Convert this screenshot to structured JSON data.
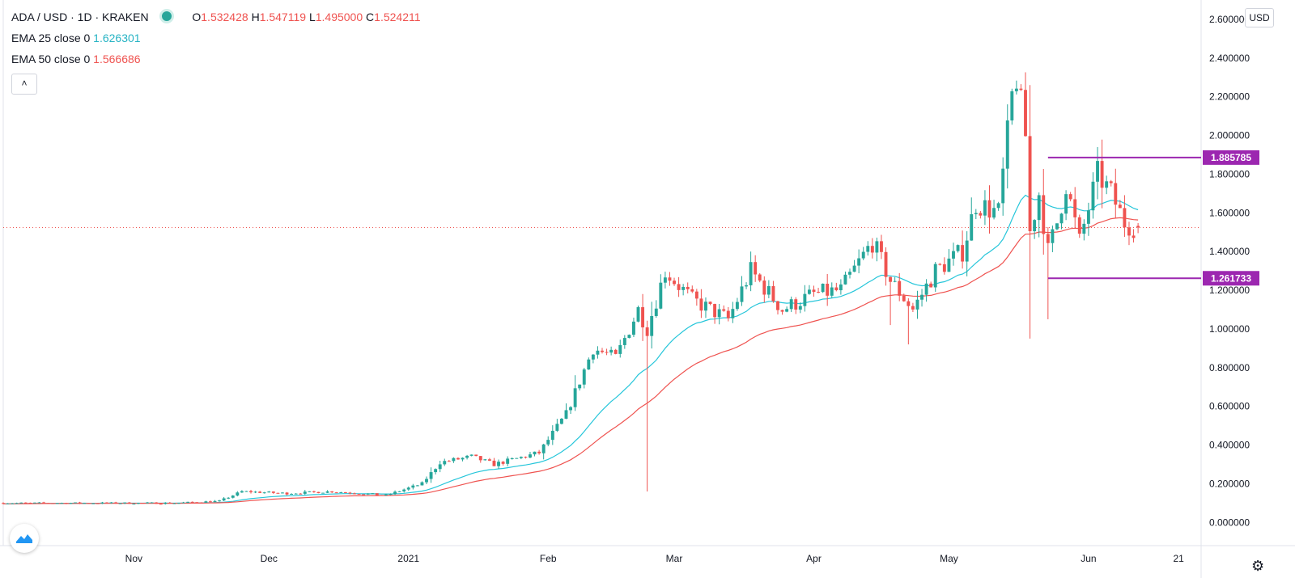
{
  "header": {
    "symbol": "ADA / USD · 1D · KRAKEN",
    "o_label": "O",
    "o_value": "1.532428",
    "h_label": "H",
    "h_value": "1.547119",
    "l_label": "L",
    "l_value": "1.495000",
    "c_label": "C",
    "c_value": "1.524211",
    "ema25_label": "EMA 25 close 0",
    "ema25_value": "1.626301",
    "ema50_label": "EMA 50 close 0",
    "ema50_value": "1.566686",
    "collapse_icon": "chevron-up-icon"
  },
  "controls": {
    "currency_button": "USD",
    "settings_icon": "gear-icon",
    "logo_icon": "tradingview-logo-icon"
  },
  "colors": {
    "up": "#26a69a",
    "down": "#ef5350",
    "ema25": "#26c6da",
    "ema50": "#ef5350",
    "level": "#9c27b0"
  },
  "chart_data": {
    "type": "line",
    "y_ticks": [
      "2.600000",
      "2.400000",
      "2.200000",
      "2.000000",
      "1.800000",
      "1.600000",
      "1.400000",
      "1.200000",
      "1.000000",
      "0.800000",
      "0.600000",
      "0.400000",
      "0.200000",
      "0.000000"
    ],
    "x_ticks": [
      {
        "label": "Nov",
        "date": "2020-11-01"
      },
      {
        "label": "Dec",
        "date": "2020-12-01"
      },
      {
        "label": "2021",
        "date": "2021-01-01"
      },
      {
        "label": "Feb",
        "date": "2021-02-01"
      },
      {
        "label": "Mar",
        "date": "2021-03-01"
      },
      {
        "label": "Apr",
        "date": "2021-04-01"
      },
      {
        "label": "May",
        "date": "2021-05-01"
      },
      {
        "label": "Jun",
        "date": "2021-06-01"
      },
      {
        "label": "21",
        "date": "2021-06-21"
      }
    ],
    "ylim": [
      -0.12,
      2.7
    ],
    "xlim": [
      "2020-10-03",
      "2021-06-26"
    ],
    "price_anchors": [
      {
        "date": "2020-10-03",
        "close": 0.1
      },
      {
        "date": "2020-11-10",
        "close": 0.1
      },
      {
        "date": "2020-11-20",
        "close": 0.11
      },
      {
        "date": "2020-11-25",
        "close": 0.16
      },
      {
        "date": "2020-12-05",
        "close": 0.15
      },
      {
        "date": "2020-12-15",
        "close": 0.16
      },
      {
        "date": "2020-12-27",
        "close": 0.14
      },
      {
        "date": "2021-01-04",
        "close": 0.2
      },
      {
        "date": "2021-01-08",
        "close": 0.31
      },
      {
        "date": "2021-01-15",
        "close": 0.34
      },
      {
        "date": "2021-01-20",
        "close": 0.3
      },
      {
        "date": "2021-01-30",
        "close": 0.36
      },
      {
        "date": "2021-02-05",
        "close": 0.56
      },
      {
        "date": "2021-02-11",
        "close": 0.9
      },
      {
        "date": "2021-02-16",
        "close": 0.85
      },
      {
        "date": "2021-02-21",
        "close": 1.1
      },
      {
        "date": "2021-02-23",
        "close": 1.0
      },
      {
        "date": "2021-02-27",
        "close": 1.3
      },
      {
        "date": "2021-03-05",
        "close": 1.15
      },
      {
        "date": "2021-03-13",
        "close": 1.05
      },
      {
        "date": "2021-03-18",
        "close": 1.3
      },
      {
        "date": "2021-03-25",
        "close": 1.1
      },
      {
        "date": "2021-04-01",
        "close": 1.18
      },
      {
        "date": "2021-04-07",
        "close": 1.2
      },
      {
        "date": "2021-04-14",
        "close": 1.45
      },
      {
        "date": "2021-04-18",
        "close": 1.25
      },
      {
        "date": "2021-04-23",
        "close": 1.1
      },
      {
        "date": "2021-04-28",
        "close": 1.3
      },
      {
        "date": "2021-05-04",
        "close": 1.4
      },
      {
        "date": "2021-05-07",
        "close": 1.65
      },
      {
        "date": "2021-05-12",
        "close": 1.6
      },
      {
        "date": "2021-05-15",
        "close": 2.2
      },
      {
        "date": "2021-05-16",
        "close": 2.3
      },
      {
        "date": "2021-05-18",
        "close": 2.0
      },
      {
        "date": "2021-05-19",
        "close": 1.5
      },
      {
        "date": "2021-05-21",
        "close": 1.7
      },
      {
        "date": "2021-05-23",
        "close": 1.4
      },
      {
        "date": "2021-05-25",
        "close": 1.55
      },
      {
        "date": "2021-05-27",
        "close": 1.75
      },
      {
        "date": "2021-05-30",
        "close": 1.45
      },
      {
        "date": "2021-06-03",
        "close": 1.8
      },
      {
        "date": "2021-06-06",
        "close": 1.7
      },
      {
        "date": "2021-06-09",
        "close": 1.55
      },
      {
        "date": "2021-06-12",
        "close": 1.52
      }
    ],
    "spikes": [
      {
        "date": "2021-02-23",
        "low": 0.16
      },
      {
        "date": "2021-05-19",
        "low": 0.95
      },
      {
        "date": "2021-05-23",
        "low": 1.05
      },
      {
        "date": "2021-04-22",
        "low": 0.92
      },
      {
        "date": "2021-04-18",
        "low": 1.02
      }
    ],
    "series": [
      {
        "name": "EMA 25 close 0",
        "period": 25
      },
      {
        "name": "EMA 50 close 0",
        "period": 50
      }
    ],
    "last_price": 1.524211,
    "levels": [
      {
        "label": "1.885785",
        "value": 1.885785,
        "from": "2021-05-23"
      },
      {
        "label": "1.261733",
        "value": 1.261733,
        "from": "2021-05-23"
      }
    ]
  }
}
